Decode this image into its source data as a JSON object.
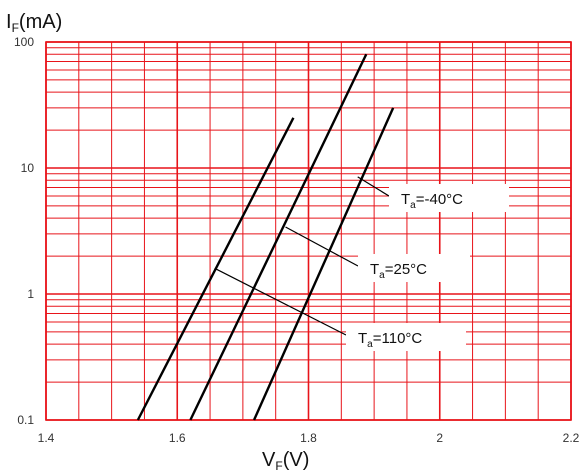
{
  "chart_data": {
    "type": "line",
    "title": "",
    "ylabel": {
      "main": "I",
      "sub": "F",
      "unit": "(mA)"
    },
    "xlabel": {
      "main": "V",
      "sub": "F",
      "unit": "(V)"
    },
    "xlim": [
      1.4,
      2.2
    ],
    "ylim": [
      0.1,
      100
    ],
    "y_scale": "log",
    "grid": true,
    "grid_color": "#e8141a",
    "line_color": "#000000",
    "x_ticks": [
      "1.4",
      "1.6",
      "1.8",
      "2",
      "2.2"
    ],
    "y_ticks": [
      "0.1",
      "1",
      "10",
      "100"
    ],
    "series": [
      {
        "name": "Ta=-40°C",
        "x": [
          1.54,
          1.777
        ],
        "y": [
          0.1,
          25
        ]
      },
      {
        "name": "Ta=25°C",
        "x": [
          1.62,
          1.888
        ],
        "y": [
          0.1,
          80
        ]
      },
      {
        "name": "Ta=110°C",
        "x": [
          1.717,
          1.929
        ],
        "y": [
          0.1,
          30
        ]
      }
    ],
    "annotations": [
      {
        "main": "T",
        "sub": "a",
        "rest": "=-40°C",
        "pointer_to": [
          1.875,
          8.5
        ]
      },
      {
        "main": "T",
        "sub": "a",
        "rest": "=25°C",
        "pointer_to": [
          1.765,
          3.4
        ]
      },
      {
        "main": "T",
        "sub": "a",
        "rest": "=110°C",
        "pointer_to": [
          1.657,
          1.6
        ]
      }
    ]
  }
}
